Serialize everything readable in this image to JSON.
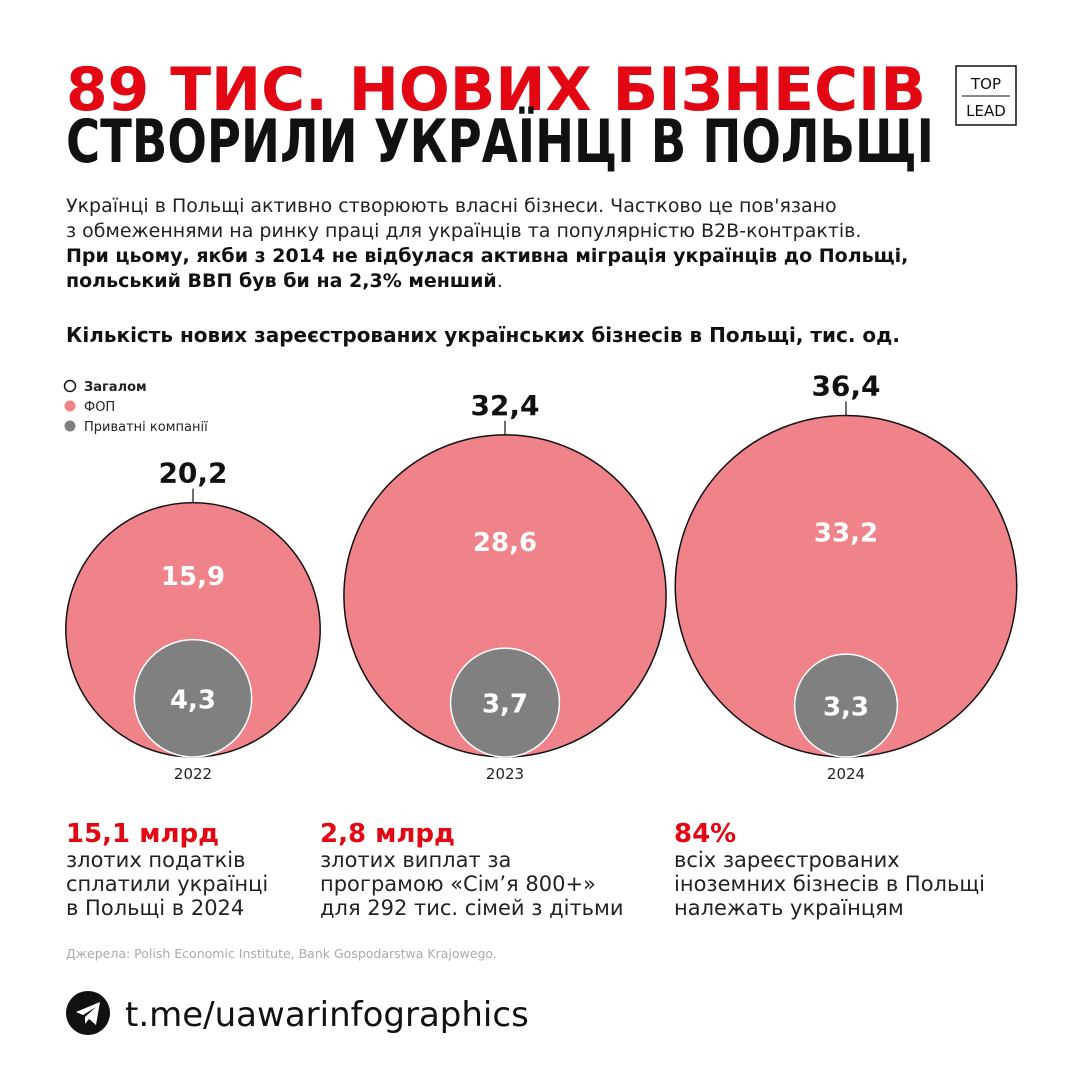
{
  "header": {
    "title_line1": "89 ТИС. НОВИХ БІЗНЕСІВ",
    "title_line2": "СТВОРИЛИ УКРАЇНЦІ В ПОЛЬЩІ",
    "logo": [
      "TOP",
      "LEAD"
    ]
  },
  "intro": {
    "lines": [
      "Українці в Польщі активно створюють власні бізнеси. Частково це пов'язано",
      "з обмеженнями на ринку праці для українців та популярністю B2B-контрактів."
    ],
    "bold_lines": [
      "При цьому, якби з 2014 не відбулася активна міграція українців до Польщі,",
      "польський ВВП був би на 2,3% менший"
    ],
    "end": "."
  },
  "chart_data": {
    "type": "bubble",
    "title": "Кількість нових зареєстрованих українських бізнесів в Польщі, тис. од.",
    "categories": [
      "2022",
      "2023",
      "2024"
    ],
    "series": [
      {
        "name": "Загалом",
        "color": "#ffffff",
        "values": [
          20.2,
          32.4,
          36.4
        ],
        "value_labels": [
          "20,2",
          "32,4",
          "36,4"
        ]
      },
      {
        "name": "ФОП",
        "color": "#f0828a",
        "values": [
          15.9,
          28.6,
          33.2
        ],
        "value_labels": [
          "15,9",
          "28,6",
          "33,2"
        ]
      },
      {
        "name": "Приватні компанії",
        "color": "#808080",
        "values": [
          4.3,
          3.7,
          3.3
        ],
        "value_labels": [
          "4,3",
          "3,7",
          "3,3"
        ]
      }
    ]
  },
  "stats": [
    {
      "value": "15,1 млрд",
      "lines": [
        "злотих податків",
        "сплатили українці",
        "в Польщі в 2024"
      ]
    },
    {
      "value": "2,8 млрд",
      "lines": [
        "злотих виплат за",
        "програмою «Сім’я 800+»",
        "для 292 тис. сімей з дітьми"
      ]
    },
    {
      "value": "84%",
      "lines": [
        "всіх зареєстрованих",
        "іноземних бізнесів в Польщі",
        "належать українцям"
      ]
    }
  ],
  "source": "Джерела: Polish Economic Institute, Bank Gospodarstwa Krajowego.",
  "footer": "t.me/uawarinfographics"
}
